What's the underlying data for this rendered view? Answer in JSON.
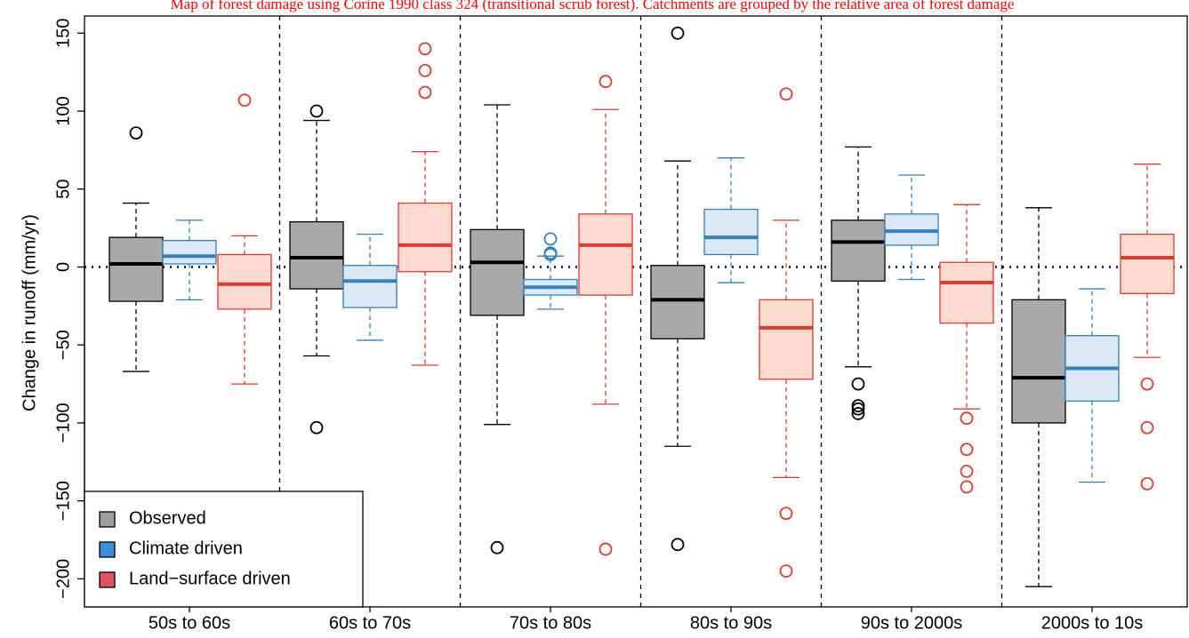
{
  "chart_data": {
    "type": "boxplot",
    "title": "Map of forest damage using Corine 1990 class 324 (transitional scrub forest). Catchments are grouped by the relative area of forest damage",
    "y_label": "Change in runoff (mm/yr)",
    "categories": [
      "50s to 60s",
      "60s to 70s",
      "70s to 80s",
      "80s to 90s",
      "90s to 2000s",
      "2000s to 10s"
    ],
    "ylim": [
      -218,
      161
    ],
    "yticks": [
      150,
      100,
      50,
      0,
      {
        "value": -50,
        "label": "−50"
      },
      {
        "value": -100,
        "label": "−100"
      },
      {
        "value": -150,
        "label": "−150"
      },
      {
        "value": -200,
        "label": "−200"
      }
    ],
    "reference_line": 0,
    "legend_position": "bottom-left",
    "series": [
      {
        "name": "Observed",
        "color": "#000000",
        "fill": "#a9a9a9",
        "legend_color": "#9e9e9e",
        "whisker_low": [
          -67,
          -57,
          -101,
          -115,
          -64,
          -205
        ],
        "q1": [
          -22,
          -14,
          -31,
          -46,
          -9,
          -100
        ],
        "median": [
          2,
          6,
          3,
          -21,
          16,
          -71
        ],
        "q3": [
          19,
          29,
          24,
          1,
          30,
          -21
        ],
        "whisker_high": [
          41,
          94,
          104,
          68,
          77,
          38
        ],
        "outliers": [
          [
            86
          ],
          [
            100,
            -103
          ],
          [
            -180
          ],
          [
            150,
            -178
          ],
          [
            -75,
            -89,
            -91,
            -94
          ],
          []
        ]
      },
      {
        "name": "Climate driven",
        "color": "#3182bd",
        "fill": "#dbe8f5",
        "legend_color": "#3a8fd8",
        "whisker_low": [
          -21,
          -47,
          -27,
          -10,
          -8,
          -138
        ],
        "q1": [
          2,
          -26,
          -18,
          8,
          14,
          -86
        ],
        "median": [
          7,
          -9,
          -13,
          19,
          23,
          -65
        ],
        "q3": [
          17,
          1,
          -8,
          37,
          34,
          -44
        ],
        "whisker_high": [
          30,
          21,
          7,
          70,
          59,
          -14
        ],
        "outliers": [
          [],
          [],
          [
            18,
            9,
            8
          ],
          [],
          [],
          []
        ]
      },
      {
        "name": "Land−surface driven",
        "color": "#e03a2f",
        "fill": "#fcdcd0",
        "legend_color": "#e05060",
        "whisker_low": [
          -75,
          -63,
          -88,
          -135,
          -91,
          -58
        ],
        "q1": [
          -27,
          -3,
          -18,
          -72,
          -36,
          -17
        ],
        "median": [
          -11,
          14,
          14,
          -39,
          -10,
          6
        ],
        "q3": [
          8,
          41,
          34,
          -21,
          3,
          21
        ],
        "whisker_high": [
          20,
          74,
          101,
          30,
          40,
          66
        ],
        "outliers": [
          [
            107
          ],
          [
            140,
            126,
            112
          ],
          [
            119,
            -181
          ],
          [
            111,
            -158,
            -195
          ],
          [
            -97,
            -117,
            -131,
            -141
          ],
          [
            -75,
            -103,
            -139
          ]
        ]
      }
    ]
  }
}
